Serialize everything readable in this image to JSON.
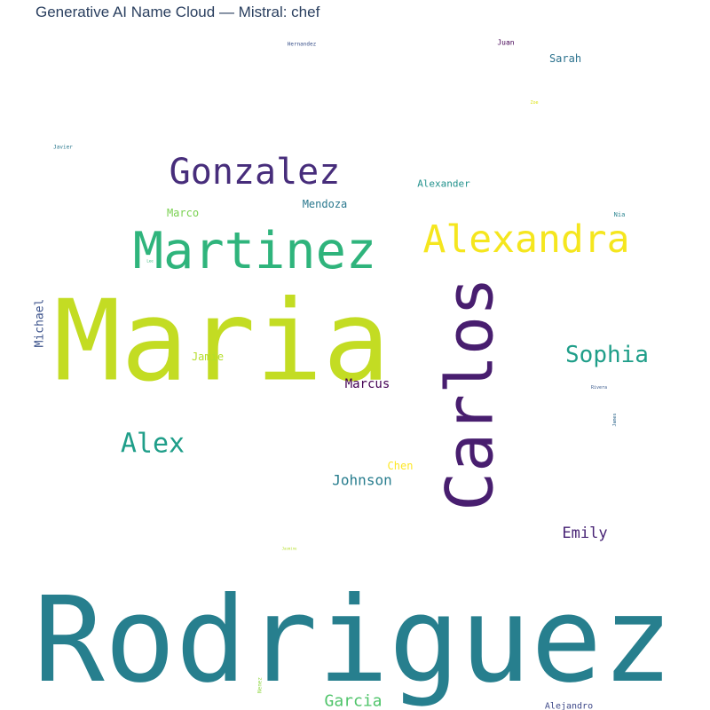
{
  "chart_data": {
    "type": "wordcloud",
    "title": "Generative AI Name Cloud — Mistral: chef",
    "words": [
      {
        "text": "Rodriguez",
        "weight": 100,
        "color": "#277f8e",
        "rotate": 0
      },
      {
        "text": "Maria",
        "weight": 82,
        "color": "#c3dc23",
        "rotate": 0
      },
      {
        "text": "Carlos",
        "weight": 60,
        "color": "#481e6f",
        "rotate": -90
      },
      {
        "text": "Martinez",
        "weight": 42,
        "color": "#2fb47c",
        "rotate": 0
      },
      {
        "text": "Alexandra",
        "weight": 33,
        "color": "#f5e61e",
        "rotate": 0
      },
      {
        "text": "Gonzalez",
        "weight": 31,
        "color": "#472d7b",
        "rotate": 0
      },
      {
        "text": "Sophia",
        "weight": 23,
        "color": "#1f9e89",
        "rotate": 0
      },
      {
        "text": "Alex",
        "weight": 26,
        "color": "#1f9e89",
        "rotate": 0
      },
      {
        "text": "Johnson",
        "weight": 14,
        "color": "#287d8e",
        "rotate": 0
      },
      {
        "text": "Emily",
        "weight": 16,
        "color": "#482475",
        "rotate": 0
      },
      {
        "text": "Garcia",
        "weight": 16,
        "color": "#4fc46a",
        "rotate": 0
      },
      {
        "text": "Marcus",
        "weight": 12,
        "color": "#440154",
        "rotate": 0
      },
      {
        "text": "Michael",
        "weight": 11,
        "color": "#3b528b",
        "rotate": -90
      },
      {
        "text": "Mendoza",
        "weight": 10,
        "color": "#2a788e",
        "rotate": 0
      },
      {
        "text": "Alexander",
        "weight": 9,
        "color": "#21918c",
        "rotate": 0
      },
      {
        "text": "Marco",
        "weight": 10,
        "color": "#7ad151",
        "rotate": 0
      },
      {
        "text": "Jamie",
        "weight": 10,
        "color": "#b5de2b",
        "rotate": 0
      },
      {
        "text": "Chen",
        "weight": 10,
        "color": "#fde725",
        "rotate": 0
      },
      {
        "text": "Sarah",
        "weight": 9,
        "color": "#2c728e",
        "rotate": 0
      },
      {
        "text": "Alejandro",
        "weight": 7,
        "color": "#3e4989",
        "rotate": 0
      },
      {
        "text": "Juan",
        "weight": 6,
        "color": "#440154",
        "rotate": 0
      },
      {
        "text": "Hernandez",
        "weight": 5,
        "color": "#3b528b",
        "rotate": 0
      },
      {
        "text": "Javier",
        "weight": 5,
        "color": "#2a788e",
        "rotate": 0
      },
      {
        "text": "Nia",
        "weight": 5,
        "color": "#26828e",
        "rotate": 0
      },
      {
        "text": "Rivera",
        "weight": 4,
        "color": "#38598c",
        "rotate": 0
      },
      {
        "text": "James",
        "weight": 4,
        "color": "#31688e",
        "rotate": -90
      },
      {
        "text": "Lee",
        "weight": 3,
        "color": "#35b779",
        "rotate": 0
      },
      {
        "text": "Zoe",
        "weight": 3,
        "color": "#dde318",
        "rotate": 0
      },
      {
        "text": "Jasmine",
        "weight": 3,
        "color": "#b5de2b",
        "rotate": 0
      },
      {
        "text": "Nenez",
        "weight": 4,
        "color": "#90d743",
        "rotate": -90
      }
    ]
  }
}
